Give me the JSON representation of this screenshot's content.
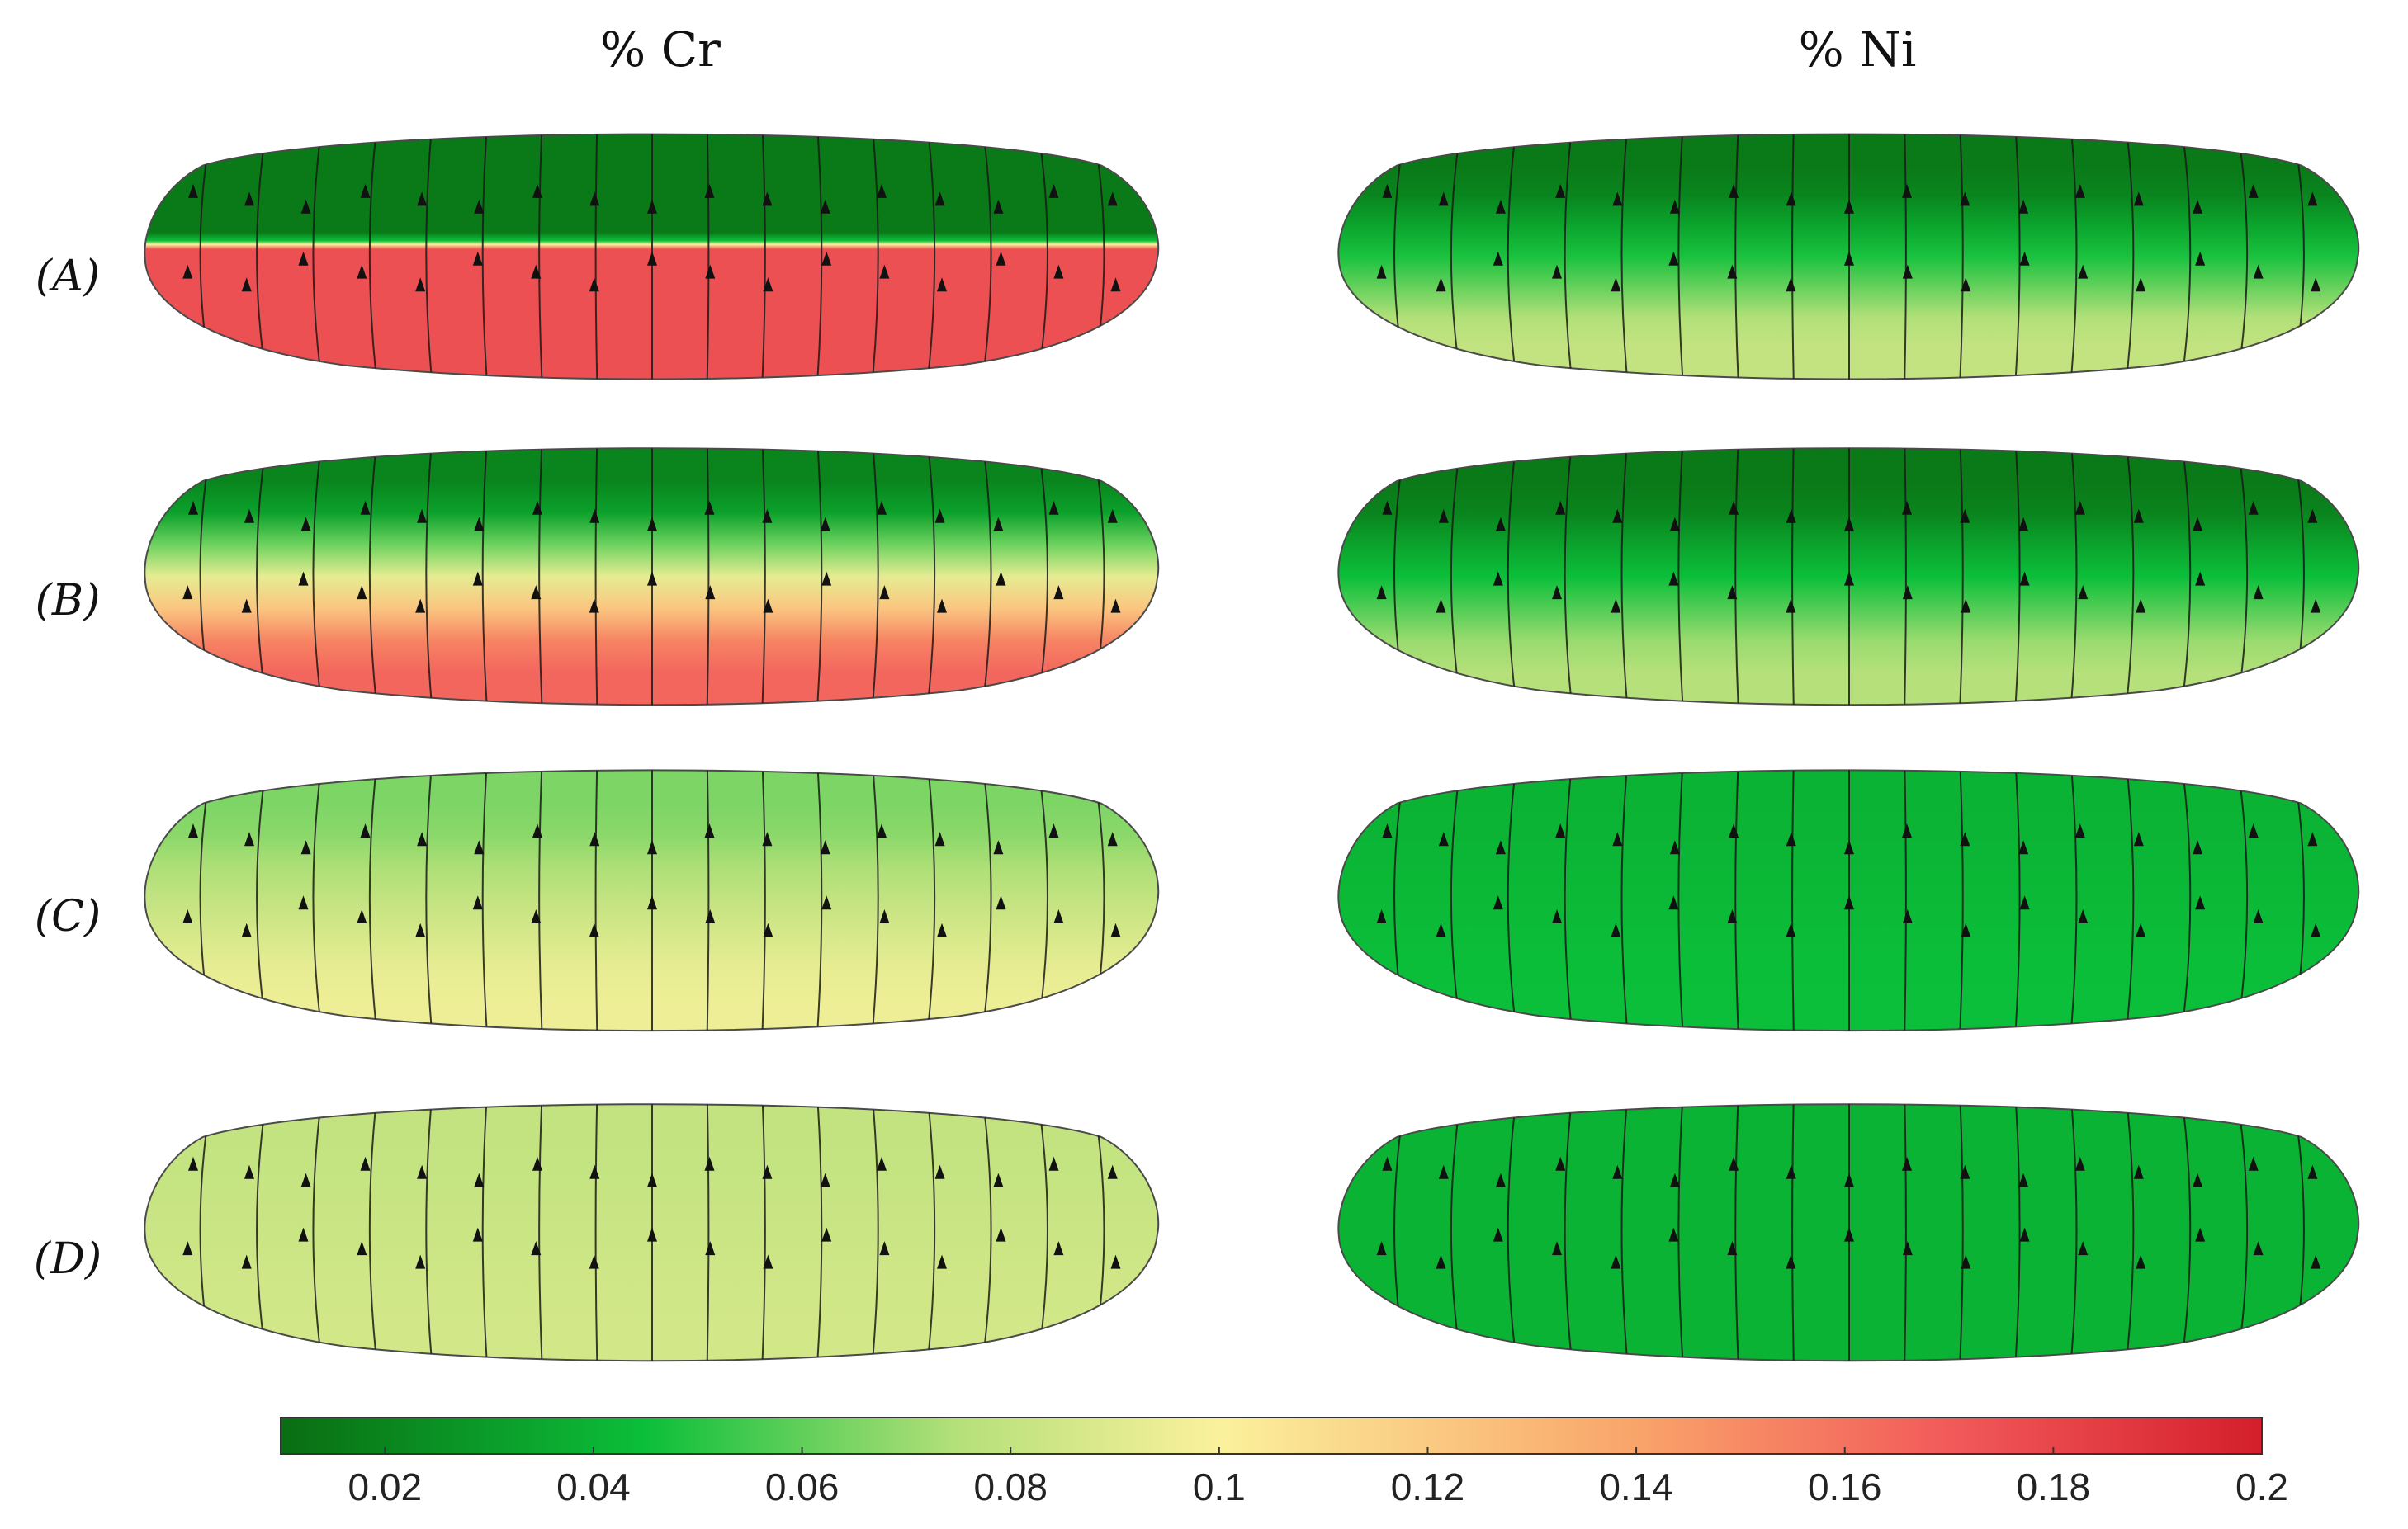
{
  "figure": {
    "columns": [
      {
        "id": "cr",
        "title": "% Cr"
      },
      {
        "id": "ni",
        "title": "% Ni"
      }
    ],
    "rows": [
      {
        "id": "A",
        "label": "(A)"
      },
      {
        "id": "B",
        "label": "(B)"
      },
      {
        "id": "C",
        "label": "(C)"
      },
      {
        "id": "D",
        "label": "(D)"
      }
    ],
    "panels": {
      "cr": {
        "A": {
          "top": 0.015,
          "bottom": 0.175,
          "boundary": 0.45,
          "sharp": true
        },
        "B": {
          "top": 0.02,
          "bottom": 0.165,
          "boundary": 0.5,
          "sharp": false
        },
        "C": {
          "top": 0.065,
          "bottom": 0.095,
          "boundary": 0.5,
          "sharp": false
        },
        "D": {
          "top": 0.08,
          "bottom": 0.085,
          "boundary": 0.5,
          "sharp": false
        }
      },
      "ni": {
        "A": {
          "top": 0.015,
          "bottom": 0.08,
          "boundary": 0.5,
          "sharp": false
        },
        "B": {
          "top": 0.015,
          "bottom": 0.075,
          "boundary": 0.5,
          "sharp": false
        },
        "C": {
          "top": 0.04,
          "bottom": 0.045,
          "boundary": 0.5,
          "sharp": false
        },
        "D": {
          "top": 0.04,
          "bottom": 0.04,
          "boundary": 0.5,
          "sharp": false
        }
      }
    }
  },
  "colorbar": {
    "min": 0.01,
    "max": 0.2,
    "ticks": [
      {
        "value": 0.02,
        "label": "0.02"
      },
      {
        "value": 0.04,
        "label": "0.04"
      },
      {
        "value": 0.06,
        "label": "0.06"
      },
      {
        "value": 0.08,
        "label": "0.08"
      },
      {
        "value": 0.1,
        "label": "0.1"
      },
      {
        "value": 0.12,
        "label": "0.12"
      },
      {
        "value": 0.14,
        "label": "0.14"
      },
      {
        "value": 0.16,
        "label": "0.16"
      },
      {
        "value": 0.18,
        "label": "0.18"
      },
      {
        "value": 0.2,
        "label": "0.2"
      }
    ],
    "stops": [
      {
        "value": 0.01,
        "color": "#0a6d12"
      },
      {
        "value": 0.045,
        "color": "#0bbf3a"
      },
      {
        "value": 0.075,
        "color": "#b5e07a"
      },
      {
        "value": 0.1,
        "color": "#fbf19c"
      },
      {
        "value": 0.14,
        "color": "#f9a46a"
      },
      {
        "value": 0.17,
        "color": "#f25a5a"
      },
      {
        "value": 0.2,
        "color": "#d41f2a"
      }
    ]
  }
}
